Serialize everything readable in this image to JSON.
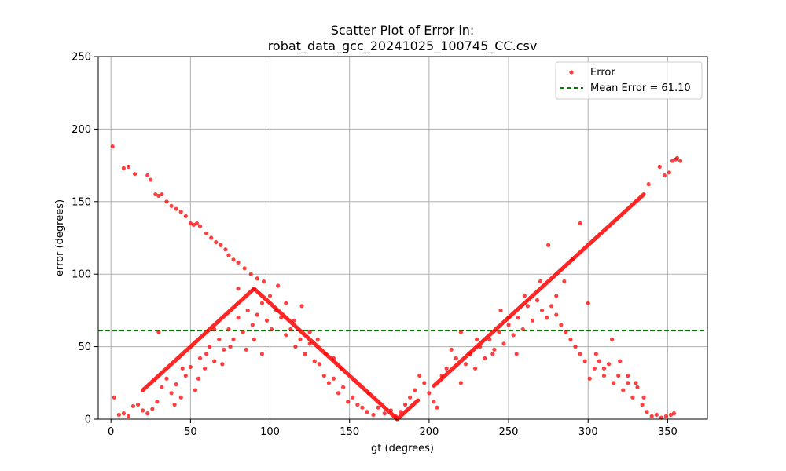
{
  "chart_data": {
    "type": "scatter",
    "title_line1": "Scatter Plot of Error in:",
    "title_line2": "robat_data_gcc_20241025_100745_CC.csv",
    "xlabel": "gt (degrees)",
    "ylabel": "error (degrees)",
    "xlim": [
      -8,
      375
    ],
    "ylim": [
      0,
      250
    ],
    "xticks": [
      0,
      50,
      100,
      150,
      200,
      250,
      300,
      350
    ],
    "yticks": [
      0,
      50,
      100,
      150,
      200,
      250
    ],
    "xtick_labels": [
      "0",
      "50",
      "100",
      "150",
      "200",
      "250",
      "300",
      "350"
    ],
    "ytick_labels": [
      "0",
      "50",
      "100",
      "150",
      "200",
      "250"
    ],
    "grid": true,
    "legend_position": "top-right",
    "point_color": "#ff0000",
    "series": [
      {
        "name": "Error",
        "points": [
          [
            1,
            188
          ],
          [
            8,
            173
          ],
          [
            11,
            174
          ],
          [
            15,
            169
          ],
          [
            23,
            168
          ],
          [
            25,
            165
          ],
          [
            28,
            155
          ],
          [
            30,
            154
          ],
          [
            32,
            155
          ],
          [
            35,
            150
          ],
          [
            38,
            147
          ],
          [
            41,
            145
          ],
          [
            44,
            143
          ],
          [
            47,
            140
          ],
          [
            50,
            135
          ],
          [
            52,
            134
          ],
          [
            54,
            135
          ],
          [
            56,
            133
          ],
          [
            60,
            128
          ],
          [
            63,
            125
          ],
          [
            66,
            122
          ],
          [
            69,
            120
          ],
          [
            72,
            117
          ],
          [
            74,
            113
          ],
          [
            77,
            110
          ],
          [
            80,
            108
          ],
          [
            84,
            104
          ],
          [
            88,
            100
          ],
          [
            92,
            97
          ],
          [
            96,
            95
          ],
          [
            2,
            15
          ],
          [
            5,
            3
          ],
          [
            8,
            4
          ],
          [
            11,
            2
          ],
          [
            14,
            9
          ],
          [
            17,
            10
          ],
          [
            20,
            6
          ],
          [
            23,
            4
          ],
          [
            26,
            7
          ],
          [
            29,
            12
          ],
          [
            32,
            22
          ],
          [
            35,
            28
          ],
          [
            38,
            18
          ],
          [
            41,
            24
          ],
          [
            44,
            15
          ],
          [
            47,
            30
          ],
          [
            50,
            36
          ],
          [
            53,
            20
          ],
          [
            56,
            42
          ],
          [
            59,
            35
          ],
          [
            62,
            50
          ],
          [
            65,
            40
          ],
          [
            68,
            55
          ],
          [
            71,
            48
          ],
          [
            74,
            62
          ],
          [
            77,
            55
          ],
          [
            80,
            70
          ],
          [
            83,
            60
          ],
          [
            86,
            75
          ],
          [
            89,
            65
          ],
          [
            92,
            72
          ],
          [
            95,
            80
          ],
          [
            98,
            68
          ],
          [
            101,
            62
          ],
          [
            104,
            75
          ],
          [
            107,
            70
          ],
          [
            110,
            58
          ],
          [
            113,
            62
          ],
          [
            116,
            50
          ],
          [
            119,
            55
          ],
          [
            122,
            45
          ],
          [
            125,
            52
          ],
          [
            128,
            40
          ],
          [
            131,
            38
          ],
          [
            134,
            30
          ],
          [
            137,
            25
          ],
          [
            140,
            28
          ],
          [
            143,
            18
          ],
          [
            146,
            22
          ],
          [
            149,
            12
          ],
          [
            152,
            15
          ],
          [
            155,
            10
          ],
          [
            158,
            8
          ],
          [
            161,
            5
          ],
          [
            165,
            3
          ],
          [
            168,
            8
          ],
          [
            172,
            4
          ],
          [
            176,
            6
          ],
          [
            179,
            2
          ],
          [
            182,
            5
          ],
          [
            185,
            10
          ],
          [
            188,
            15
          ],
          [
            191,
            20
          ],
          [
            194,
            30
          ],
          [
            197,
            25
          ],
          [
            200,
            18
          ],
          [
            203,
            12
          ],
          [
            30,
            60
          ],
          [
            40,
            10
          ],
          [
            45,
            35
          ],
          [
            55,
            28
          ],
          [
            60,
            45
          ],
          [
            65,
            62
          ],
          [
            70,
            38
          ],
          [
            75,
            50
          ],
          [
            80,
            90
          ],
          [
            85,
            48
          ],
          [
            90,
            55
          ],
          [
            95,
            45
          ],
          [
            100,
            85
          ],
          [
            105,
            92
          ],
          [
            110,
            80
          ],
          [
            115,
            68
          ],
          [
            120,
            78
          ],
          [
            125,
            60
          ],
          [
            130,
            55
          ],
          [
            135,
            45
          ],
          [
            140,
            42
          ],
          [
            145,
            35
          ],
          [
            205,
            8
          ],
          [
            208,
            30
          ],
          [
            211,
            35
          ],
          [
            214,
            48
          ],
          [
            217,
            42
          ],
          [
            220,
            25
          ],
          [
            223,
            38
          ],
          [
            226,
            45
          ],
          [
            229,
            35
          ],
          [
            232,
            50
          ],
          [
            235,
            42
          ],
          [
            238,
            55
          ],
          [
            241,
            48
          ],
          [
            244,
            60
          ],
          [
            247,
            52
          ],
          [
            250,
            65
          ],
          [
            253,
            58
          ],
          [
            256,
            70
          ],
          [
            259,
            62
          ],
          [
            262,
            78
          ],
          [
            265,
            68
          ],
          [
            268,
            82
          ],
          [
            271,
            75
          ],
          [
            274,
            70
          ],
          [
            277,
            78
          ],
          [
            280,
            72
          ],
          [
            283,
            65
          ],
          [
            286,
            60
          ],
          [
            289,
            55
          ],
          [
            292,
            50
          ],
          [
            295,
            45
          ],
          [
            298,
            40
          ],
          [
            301,
            28
          ],
          [
            304,
            35
          ],
          [
            307,
            40
          ],
          [
            310,
            35
          ],
          [
            313,
            38
          ],
          [
            316,
            25
          ],
          [
            319,
            30
          ],
          [
            322,
            20
          ],
          [
            325,
            25
          ],
          [
            328,
            15
          ],
          [
            331,
            22
          ],
          [
            334,
            10
          ],
          [
            337,
            5
          ],
          [
            340,
            2
          ],
          [
            343,
            3
          ],
          [
            346,
            1
          ],
          [
            349,
            2
          ],
          [
            352,
            3
          ],
          [
            354,
            4
          ],
          [
            250,
            70
          ],
          [
            255,
            45
          ],
          [
            260,
            85
          ],
          [
            270,
            95
          ],
          [
            275,
            120
          ],
          [
            280,
            85
          ],
          [
            285,
            95
          ],
          [
            290,
            110
          ],
          [
            295,
            135
          ],
          [
            300,
            80
          ],
          [
            305,
            45
          ],
          [
            310,
            30
          ],
          [
            315,
            55
          ],
          [
            320,
            40
          ],
          [
            325,
            30
          ],
          [
            330,
            25
          ],
          [
            335,
            15
          ],
          [
            338,
            162
          ],
          [
            345,
            174
          ],
          [
            348,
            168
          ],
          [
            351,
            170
          ],
          [
            353,
            178
          ],
          [
            355,
            179
          ],
          [
            356,
            180
          ],
          [
            358,
            178
          ],
          [
            220,
            60
          ],
          [
            230,
            55
          ],
          [
            240,
            45
          ],
          [
            245,
            75
          ]
        ],
        "lines": [
          {
            "from": [
              20,
              20
            ],
            "to": [
              90,
              90
            ]
          },
          {
            "from": [
              90,
              90
            ],
            "to": [
              162,
              18
            ]
          },
          {
            "from": [
              162,
              18
            ],
            "to": [
              180,
              0
            ]
          },
          {
            "from": [
              180,
              0
            ],
            "to": [
              193,
              13
            ]
          },
          {
            "from": [
              203,
              23
            ],
            "to": [
              335,
              155
            ]
          }
        ]
      }
    ],
    "mean_line": {
      "name": "Mean Error = 61.10",
      "value": 61.1,
      "color": "#008000"
    }
  }
}
